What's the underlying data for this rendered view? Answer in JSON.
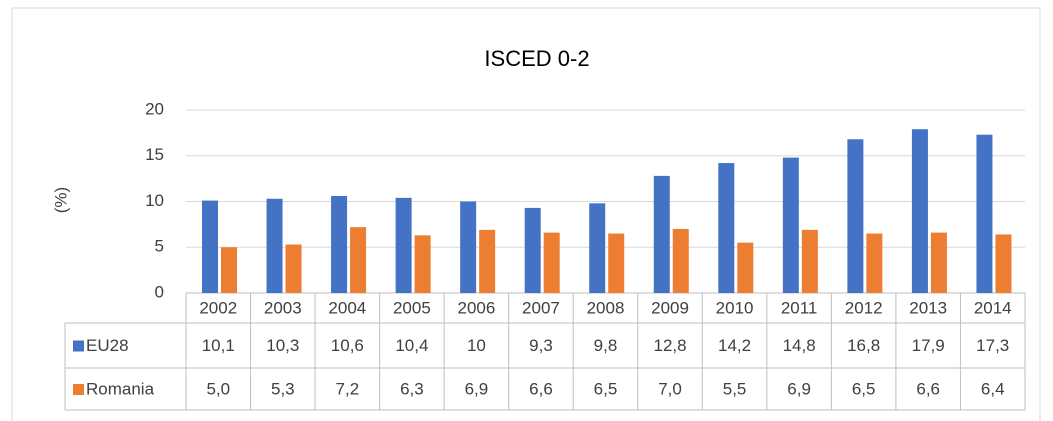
{
  "chart_data": {
    "type": "bar",
    "title": "ISCED 0-2",
    "y_label": "(%)",
    "categories": [
      "2002",
      "2003",
      "2004",
      "2005",
      "2006",
      "2007",
      "2008",
      "2009",
      "2010",
      "2011",
      "2012",
      "2013",
      "2014"
    ],
    "series": [
      {
        "name": "EU28",
        "color": "#4472c4",
        "values": [
          10.1,
          10.3,
          10.6,
          10.4,
          10,
          9.3,
          9.8,
          12.8,
          14.2,
          14.8,
          16.8,
          17.9,
          17.3
        ],
        "value_labels": [
          "10,1",
          "10,3",
          "10,6",
          "10,4",
          "10",
          "9,3",
          "9,8",
          "12,8",
          "14,2",
          "14,8",
          "16,8",
          "17,9",
          "17,3"
        ]
      },
      {
        "name": "Romania",
        "color": "#ed7d31",
        "values": [
          5.0,
          5.3,
          7.2,
          6.3,
          6.9,
          6.6,
          6.5,
          7.0,
          5.5,
          6.9,
          6.5,
          6.6,
          6.4
        ],
        "value_labels": [
          "5,0",
          "5,3",
          "7,2",
          "6,3",
          "6,9",
          "6,6",
          "6,5",
          "7,0",
          "5,5",
          "6,9",
          "6,5",
          "6,6",
          "6,4"
        ]
      }
    ],
    "ylim": [
      0,
      20
    ],
    "yticks": [
      0,
      5,
      10,
      15,
      20
    ],
    "grid": true
  }
}
